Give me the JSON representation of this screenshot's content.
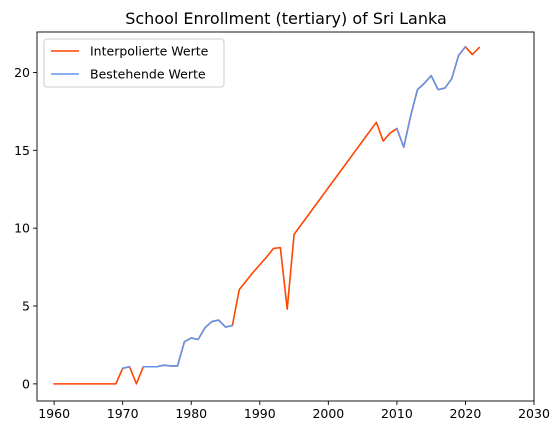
{
  "chart_data": {
    "type": "line",
    "title": "School Enrollment (tertiary) of Sri Lanka",
    "xlabel": "",
    "ylabel": "",
    "xlim": [
      1957.5,
      2030
    ],
    "ylim": [
      -1.1,
      22.6
    ],
    "xticks": [
      1960,
      1970,
      1980,
      1990,
      2000,
      2010,
      2020,
      2030
    ],
    "yticks": [
      0,
      5,
      10,
      15,
      20
    ],
    "grid": false,
    "legend_position": "top-left",
    "series": [
      {
        "name": "Interpolierte Werte",
        "color": "#FF4500",
        "x": [
          1960,
          1961,
          1962,
          1963,
          1964,
          1965,
          1966,
          1967,
          1968,
          1969,
          1970,
          1971,
          1972,
          1973,
          1974,
          1975,
          1976,
          1977,
          1978,
          1979,
          1980,
          1981,
          1982,
          1983,
          1984,
          1985,
          1986,
          1987,
          1988,
          1989,
          1990,
          1991,
          1992,
          1993,
          1994,
          1995,
          1996,
          1997,
          1998,
          1999,
          2000,
          2001,
          2002,
          2003,
          2004,
          2005,
          2006,
          2007,
          2008,
          2009,
          2010,
          2011,
          2012,
          2013,
          2014,
          2015,
          2016,
          2017,
          2018,
          2019,
          2020,
          2021,
          2022
        ],
        "values": [
          0,
          0,
          0,
          0,
          0,
          0,
          0,
          0,
          0,
          0,
          1.0,
          1.1,
          0,
          1.1,
          1.1,
          1.1,
          1.2,
          1.15,
          1.15,
          2.7,
          2.95,
          2.85,
          3.6,
          4.0,
          4.1,
          3.65,
          3.75,
          6.05,
          6.6,
          7.15,
          7.65,
          8.15,
          8.7,
          8.75,
          4.8,
          9.6,
          10.2,
          10.8,
          11.4,
          12.0,
          12.6,
          13.2,
          13.8,
          14.4,
          15.0,
          15.6,
          16.2,
          16.8,
          15.6,
          16.1,
          16.4,
          15.2,
          17.2,
          18.9,
          19.3,
          19.8,
          18.9,
          19.0,
          19.6,
          21.1,
          21.65,
          21.15,
          21.6
        ]
      },
      {
        "name": "Bestehende Werte",
        "color": "#6495ED",
        "x": [
          1970,
          1971,
          null,
          1973,
          1974,
          1975,
          1976,
          1977,
          1978,
          1979,
          1980,
          1981,
          1982,
          1983,
          1984,
          1985,
          1986,
          null,
          2010,
          2011,
          2012,
          2013,
          2014,
          2015,
          2016,
          2017,
          2018,
          2019,
          2020
        ],
        "values": [
          1.0,
          1.1,
          null,
          1.1,
          1.1,
          1.1,
          1.2,
          1.15,
          1.15,
          2.7,
          2.95,
          2.85,
          3.6,
          4.0,
          4.1,
          3.65,
          3.75,
          null,
          16.4,
          15.2,
          17.2,
          18.9,
          19.3,
          19.8,
          18.9,
          19.0,
          19.6,
          21.1,
          21.65
        ]
      }
    ]
  }
}
